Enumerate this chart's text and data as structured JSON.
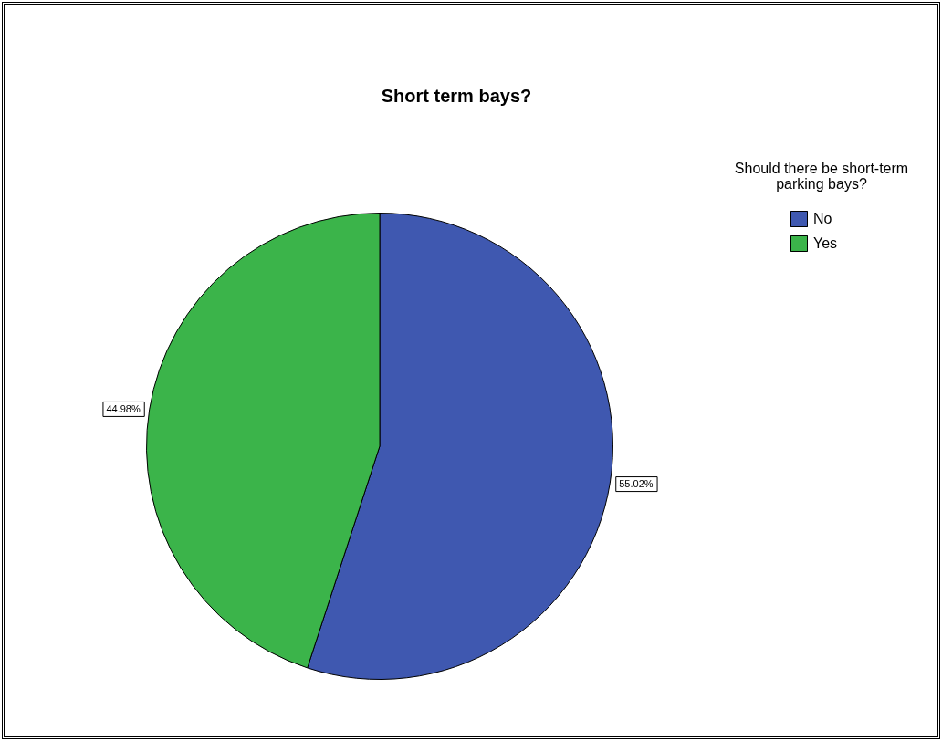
{
  "chart_data": {
    "type": "pie",
    "title": "Short term bays?",
    "legend_title": "Should there be short-term parking bays?",
    "legend": "top right",
    "categories": [
      "No",
      "Yes"
    ],
    "values": [
      55.02,
      44.98
    ],
    "colors": [
      "#3f58b0",
      "#3bb44a"
    ],
    "value_labels": [
      "55.02%",
      "44.98%"
    ]
  }
}
